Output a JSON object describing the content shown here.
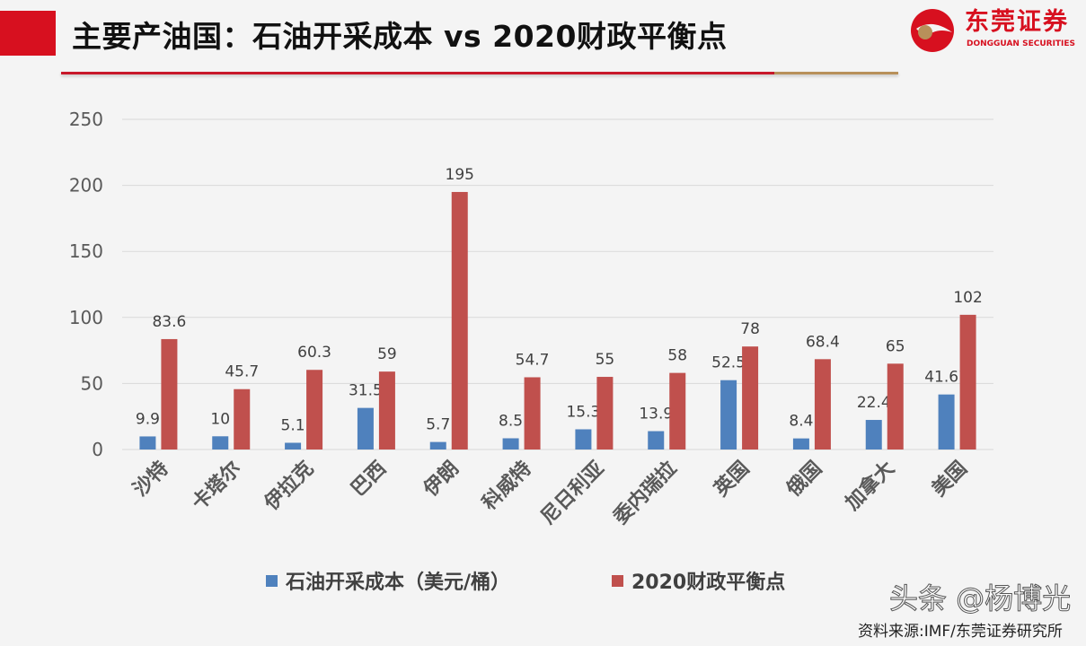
{
  "header": {
    "title": "主要产油国：石油开采成本 vs 2020财政平衡点"
  },
  "logo": {
    "cn": "东莞证券",
    "en": "DONGGUAN SECURITIES"
  },
  "colors": {
    "series1": "#4f81bd",
    "series2": "#c0504d",
    "brand_red": "#d7101f",
    "gold": "#b8905a"
  },
  "chart_data": {
    "type": "bar",
    "categories": [
      "沙特",
      "卡塔尔",
      "伊拉克",
      "巴西",
      "伊朗",
      "科威特",
      "尼日利亚",
      "委内瑞拉",
      "英国",
      "俄国",
      "加拿大",
      "美国"
    ],
    "series": [
      {
        "name": "石油开采成本（美元/桶）",
        "values": [
          9.9,
          10,
          5.1,
          31.5,
          5.7,
          8.5,
          15.3,
          13.9,
          52.5,
          8.4,
          22.4,
          41.67
        ],
        "labels": [
          "9.9",
          "10",
          "5.1",
          "31.5",
          "5.7",
          "8.5",
          "15.3",
          "13.9",
          "52.5",
          "8.4",
          "22.4",
          "41.67"
        ]
      },
      {
        "name": "2020财政平衡点",
        "values": [
          83.6,
          45.7,
          60.3,
          59,
          195,
          54.7,
          55,
          58,
          78,
          68.4,
          65,
          102
        ],
        "labels": [
          "83.6",
          "45.7",
          "60.3",
          "59",
          "195",
          "54.7",
          "55",
          "58",
          "78",
          "68.4",
          "65",
          "102"
        ]
      }
    ],
    "yticks": [
      "0",
      "50",
      "100",
      "150",
      "200",
      "250"
    ],
    "ylim": [
      0,
      250
    ],
    "grid": true,
    "legend": "bottom"
  },
  "footer": {
    "watermark": "头条 @杨博光",
    "source": "资料来源:IMF/东莞证券研究所"
  }
}
